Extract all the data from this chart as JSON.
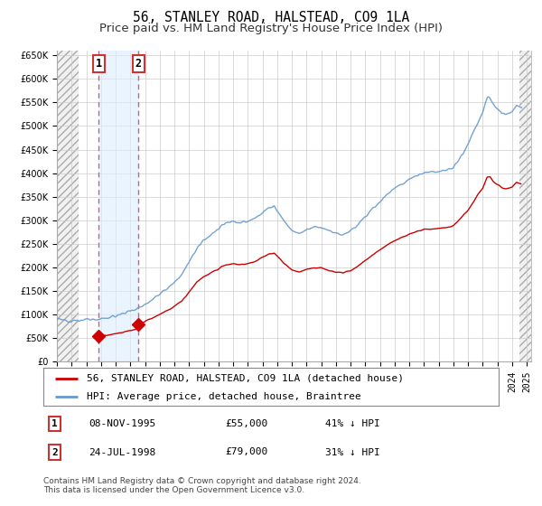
{
  "title": "56, STANLEY ROAD, HALSTEAD, CO9 1LA",
  "subtitle": "Price paid vs. HM Land Registry's House Price Index (HPI)",
  "hpi_label": "HPI: Average price, detached house, Braintree",
  "property_label": "56, STANLEY ROAD, HALSTEAD, CO9 1LA (detached house)",
  "footnote": "Contains HM Land Registry data © Crown copyright and database right 2024.\nThis data is licensed under the Open Government Licence v3.0.",
  "sale1_date": "08-NOV-1995",
  "sale1_price": 55000,
  "sale1_hpi_diff": "41% ↓ HPI",
  "sale1_x": 1995.86,
  "sale2_date": "24-JUL-1998",
  "sale2_price": 79000,
  "sale2_hpi_diff": "31% ↓ HPI",
  "sale2_x": 1998.56,
  "ylim": [
    0,
    660000
  ],
  "xlim_start": 1993.0,
  "xlim_end": 2025.3,
  "hpi_color": "#6699cc",
  "property_color": "#cc0000",
  "dot_color": "#cc0000",
  "vline_color": "#cc6666",
  "shade_color": "#ddeeff",
  "hatch_color": "#bbbbbb",
  "grid_color": "#cccccc",
  "background_color": "#ffffff",
  "title_fontsize": 10.5,
  "subtitle_fontsize": 9.5,
  "tick_fontsize": 7,
  "legend_fontsize": 8,
  "table_fontsize": 8,
  "footnote_fontsize": 6.5,
  "ytick_labels": [
    "£0",
    "£50K",
    "£100K",
    "£150K",
    "£200K",
    "£250K",
    "£300K",
    "£350K",
    "£400K",
    "£450K",
    "£500K",
    "£550K",
    "£600K",
    "£650K"
  ],
  "ytick_values": [
    0,
    50000,
    100000,
    150000,
    200000,
    250000,
    300000,
    350000,
    400000,
    450000,
    500000,
    550000,
    600000,
    650000
  ]
}
